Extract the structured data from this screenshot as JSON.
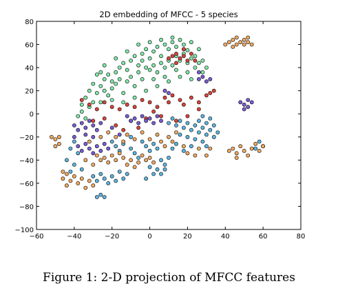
{
  "caption": "Figure 1: 2-D projection of MFCC features",
  "chart_data": {
    "type": "scatter",
    "title": "2D embedding of MFCC - 5 species",
    "xlabel": "",
    "ylabel": "",
    "xlim": [
      -60,
      80
    ],
    "ylim": [
      -100,
      80
    ],
    "xticks": [
      -60,
      -40,
      -20,
      0,
      20,
      40,
      60,
      80
    ],
    "yticks": [
      -100,
      -80,
      -60,
      -40,
      -20,
      0,
      20,
      40,
      60,
      80
    ],
    "xtick_labels": [
      "−60",
      "−40",
      "−20",
      "0",
      "20",
      "40",
      "60",
      "80"
    ],
    "ytick_labels": [
      "−100",
      "−80",
      "−60",
      "−40",
      "−20",
      "0",
      "20",
      "40",
      "60",
      "80"
    ],
    "grid": false,
    "legend": "none",
    "series": [
      {
        "color": "#80e8a8",
        "points": [
          [
            -36,
            2
          ],
          [
            -34,
            -4
          ],
          [
            -32,
            6
          ],
          [
            -30,
            10
          ],
          [
            -28,
            18
          ],
          [
            -26,
            24
          ],
          [
            -24,
            30
          ],
          [
            -22,
            34
          ],
          [
            -20,
            28
          ],
          [
            -18,
            36
          ],
          [
            -16,
            40
          ],
          [
            -14,
            44
          ],
          [
            -12,
            38
          ],
          [
            -10,
            46
          ],
          [
            -8,
            50
          ],
          [
            -6,
            42
          ],
          [
            -4,
            52
          ],
          [
            -2,
            56
          ],
          [
            0,
            48
          ],
          [
            2,
            54
          ],
          [
            4,
            58
          ],
          [
            6,
            50
          ],
          [
            8,
            60
          ],
          [
            10,
            56
          ],
          [
            12,
            62
          ],
          [
            14,
            58
          ],
          [
            16,
            64
          ],
          [
            18,
            60
          ],
          [
            20,
            55
          ],
          [
            22,
            62
          ],
          [
            24,
            50
          ],
          [
            26,
            56
          ],
          [
            28,
            46
          ],
          [
            -30,
            26
          ],
          [
            -28,
            34
          ],
          [
            -26,
            36
          ],
          [
            -24,
            20
          ],
          [
            -22,
            16
          ],
          [
            -20,
            22
          ],
          [
            -18,
            26
          ],
          [
            -16,
            30
          ],
          [
            -14,
            18
          ],
          [
            -12,
            28
          ],
          [
            -10,
            32
          ],
          [
            -8,
            24
          ],
          [
            -6,
            36
          ],
          [
            -4,
            30
          ],
          [
            -2,
            40
          ],
          [
            0,
            38
          ],
          [
            2,
            42
          ],
          [
            4,
            36
          ],
          [
            6,
            44
          ],
          [
            8,
            40
          ],
          [
            10,
            46
          ],
          [
            12,
            42
          ],
          [
            14,
            50
          ],
          [
            16,
            46
          ],
          [
            18,
            52
          ],
          [
            20,
            44
          ],
          [
            22,
            48
          ],
          [
            24,
            40
          ],
          [
            26,
            44
          ],
          [
            28,
            36
          ],
          [
            30,
            40
          ],
          [
            -34,
            14
          ],
          [
            -32,
            20
          ],
          [
            -38,
            -2
          ],
          [
            -36,
            8
          ],
          [
            -26,
            10
          ],
          [
            -20,
            12
          ],
          [
            -14,
            10
          ],
          [
            -8,
            14
          ],
          [
            -2,
            20
          ],
          [
            4,
            24
          ],
          [
            10,
            28
          ],
          [
            16,
            32
          ],
          [
            22,
            30
          ],
          [
            -12,
            54
          ],
          [
            -6,
            60
          ],
          [
            0,
            62
          ],
          [
            6,
            64
          ],
          [
            12,
            66
          ],
          [
            -18,
            48
          ],
          [
            -24,
            42
          ],
          [
            8,
            32
          ],
          [
            14,
            38
          ],
          [
            -4,
            46
          ],
          [
            2,
            30
          ],
          [
            20,
            36
          ]
        ]
      },
      {
        "color": "#d9453a",
        "points": [
          [
            12,
            50
          ],
          [
            14,
            52
          ],
          [
            16,
            48
          ],
          [
            18,
            50
          ],
          [
            20,
            46
          ],
          [
            22,
            52
          ],
          [
            24,
            46
          ],
          [
            18,
            56
          ],
          [
            14,
            44
          ],
          [
            10,
            48
          ],
          [
            8,
            14
          ],
          [
            10,
            10
          ],
          [
            12,
            16
          ],
          [
            16,
            12
          ],
          [
            18,
            8
          ],
          [
            22,
            14
          ],
          [
            26,
            10
          ],
          [
            30,
            16
          ],
          [
            32,
            18
          ],
          [
            34,
            20
          ],
          [
            4,
            6
          ],
          [
            0,
            10
          ],
          [
            -4,
            12
          ],
          [
            -8,
            6
          ],
          [
            -12,
            8
          ],
          [
            -16,
            4
          ],
          [
            -20,
            6
          ],
          [
            -24,
            10
          ],
          [
            -28,
            4
          ],
          [
            -32,
            8
          ],
          [
            -36,
            12
          ],
          [
            -18,
            -10
          ],
          [
            -14,
            -14
          ],
          [
            -10,
            -6
          ],
          [
            -6,
            -12
          ],
          [
            -2,
            -4
          ],
          [
            2,
            2
          ],
          [
            6,
            -2
          ],
          [
            14,
            -6
          ],
          [
            20,
            -2
          ],
          [
            26,
            4
          ],
          [
            -24,
            -4
          ],
          [
            -30,
            -6
          ]
        ]
      },
      {
        "color": "#7a5cd6",
        "points": [
          [
            -40,
            -10
          ],
          [
            -38,
            -14
          ],
          [
            -36,
            -8
          ],
          [
            -34,
            -12
          ],
          [
            -32,
            -6
          ],
          [
            -30,
            -10
          ],
          [
            -28,
            -14
          ],
          [
            -26,
            -8
          ],
          [
            -38,
            -28
          ],
          [
            -36,
            -32
          ],
          [
            -34,
            -26
          ],
          [
            -32,
            -30
          ],
          [
            -30,
            -34
          ],
          [
            -28,
            -28
          ],
          [
            -26,
            -32
          ],
          [
            -24,
            -26
          ],
          [
            -22,
            -30
          ],
          [
            -12,
            -2
          ],
          [
            -10,
            -6
          ],
          [
            -8,
            -4
          ],
          [
            -6,
            -8
          ],
          [
            -4,
            -2
          ],
          [
            -2,
            -6
          ],
          [
            0,
            -4
          ],
          [
            2,
            -8
          ],
          [
            4,
            -2
          ],
          [
            6,
            -6
          ],
          [
            26,
            30
          ],
          [
            28,
            32
          ],
          [
            30,
            28
          ],
          [
            32,
            30
          ],
          [
            26,
            36
          ],
          [
            48,
            10
          ],
          [
            50,
            8
          ],
          [
            52,
            6
          ],
          [
            50,
            4
          ],
          [
            52,
            12
          ],
          [
            54,
            10
          ],
          [
            8,
            20
          ],
          [
            10,
            18
          ],
          [
            -20,
            -12
          ],
          [
            -16,
            -18
          ],
          [
            -30,
            -20
          ],
          [
            -34,
            -18
          ],
          [
            -40,
            -20
          ]
        ]
      },
      {
        "color": "#5bb5e0",
        "points": [
          [
            10,
            -8
          ],
          [
            12,
            -4
          ],
          [
            14,
            -10
          ],
          [
            16,
            -6
          ],
          [
            18,
            -12
          ],
          [
            20,
            -8
          ],
          [
            22,
            -14
          ],
          [
            24,
            -10
          ],
          [
            26,
            -16
          ],
          [
            28,
            -12
          ],
          [
            30,
            -18
          ],
          [
            32,
            -14
          ],
          [
            34,
            -20
          ],
          [
            30,
            -8
          ],
          [
            28,
            -2
          ],
          [
            26,
            -6
          ],
          [
            32,
            -4
          ],
          [
            34,
            -10
          ],
          [
            36,
            -16
          ],
          [
            28,
            -24
          ],
          [
            30,
            -28
          ],
          [
            24,
            -22
          ],
          [
            20,
            -20
          ],
          [
            16,
            -18
          ],
          [
            6,
            -40
          ],
          [
            8,
            -44
          ],
          [
            10,
            -38
          ],
          [
            4,
            -48
          ],
          [
            2,
            -52
          ],
          [
            0,
            -46
          ],
          [
            -2,
            -56
          ],
          [
            6,
            -52
          ],
          [
            8,
            -48
          ],
          [
            -12,
            -52
          ],
          [
            -14,
            -56
          ],
          [
            -16,
            -50
          ],
          [
            -18,
            -58
          ],
          [
            -20,
            -54
          ],
          [
            -22,
            -60
          ],
          [
            -24,
            -56
          ],
          [
            -26,
            -52
          ],
          [
            -28,
            -58
          ],
          [
            -30,
            -54
          ],
          [
            -26,
            -70
          ],
          [
            -24,
            -72
          ],
          [
            -28,
            -72
          ],
          [
            -40,
            -24
          ],
          [
            -42,
            -30
          ],
          [
            -38,
            -34
          ],
          [
            -44,
            -40
          ],
          [
            -40,
            -44
          ],
          [
            -42,
            -50
          ],
          [
            -36,
            -48
          ],
          [
            -20,
            -24
          ],
          [
            -18,
            -28
          ],
          [
            -16,
            -32
          ],
          [
            -10,
            -30
          ],
          [
            -8,
            -34
          ],
          [
            -6,
            -38
          ],
          [
            -4,
            -24
          ],
          [
            -2,
            -28
          ],
          [
            0,
            -32
          ],
          [
            2,
            -26
          ],
          [
            4,
            -30
          ],
          [
            58,
            -24
          ],
          [
            60,
            -28
          ],
          [
            56,
            -30
          ],
          [
            -10,
            -20
          ],
          [
            -14,
            -26
          ],
          [
            12,
            -30
          ],
          [
            14,
            -26
          ],
          [
            18,
            -32
          ],
          [
            22,
            -28
          ]
        ]
      },
      {
        "color": "#f0a860",
        "points": [
          [
            42,
            62
          ],
          [
            44,
            64
          ],
          [
            46,
            60
          ],
          [
            48,
            62
          ],
          [
            50,
            64
          ],
          [
            52,
            62
          ],
          [
            54,
            60
          ],
          [
            46,
            66
          ],
          [
            50,
            60
          ],
          [
            44,
            58
          ],
          [
            52,
            66
          ],
          [
            40,
            60
          ],
          [
            -46,
            -56
          ],
          [
            -44,
            -52
          ],
          [
            -42,
            -58
          ],
          [
            -40,
            -54
          ],
          [
            -38,
            -60
          ],
          [
            -44,
            -62
          ],
          [
            -46,
            -50
          ],
          [
            -36,
            -56
          ],
          [
            -50,
            -22
          ],
          [
            -48,
            -26
          ],
          [
            -52,
            -20
          ],
          [
            -50,
            -28
          ],
          [
            -48,
            -20
          ],
          [
            -28,
            -36
          ],
          [
            -26,
            -40
          ],
          [
            -24,
            -38
          ],
          [
            -22,
            -42
          ],
          [
            -20,
            -36
          ],
          [
            -18,
            -40
          ],
          [
            -16,
            -34
          ],
          [
            -14,
            -38
          ],
          [
            -12,
            -44
          ],
          [
            -10,
            -40
          ],
          [
            -8,
            -46
          ],
          [
            -6,
            -42
          ],
          [
            -4,
            -36
          ],
          [
            -2,
            -40
          ],
          [
            0,
            -38
          ],
          [
            2,
            -42
          ],
          [
            44,
            -30
          ],
          [
            46,
            -34
          ],
          [
            48,
            -28
          ],
          [
            50,
            -32
          ],
          [
            52,
            -36
          ],
          [
            46,
            -38
          ],
          [
            54,
            -30
          ],
          [
            56,
            -26
          ],
          [
            58,
            -32
          ],
          [
            60,
            -28
          ],
          [
            42,
            -32
          ],
          [
            10,
            -20
          ],
          [
            12,
            -24
          ],
          [
            14,
            -16
          ],
          [
            8,
            -28
          ],
          [
            6,
            -24
          ],
          [
            4,
            -18
          ],
          [
            0,
            -22
          ],
          [
            -4,
            -16
          ],
          [
            -8,
            -22
          ],
          [
            -12,
            -18
          ],
          [
            -14,
            -24
          ],
          [
            -18,
            -20
          ],
          [
            -22,
            -16
          ],
          [
            -26,
            -20
          ],
          [
            -32,
            -24
          ],
          [
            -34,
            -40
          ],
          [
            -30,
            -44
          ],
          [
            -30,
            -62
          ],
          [
            -32,
            -58
          ],
          [
            -34,
            -64
          ],
          [
            18,
            -28
          ],
          [
            20,
            -34
          ],
          [
            24,
            -36
          ],
          [
            26,
            -30
          ],
          [
            30,
            -36
          ],
          [
            32,
            -30
          ]
        ]
      }
    ]
  }
}
